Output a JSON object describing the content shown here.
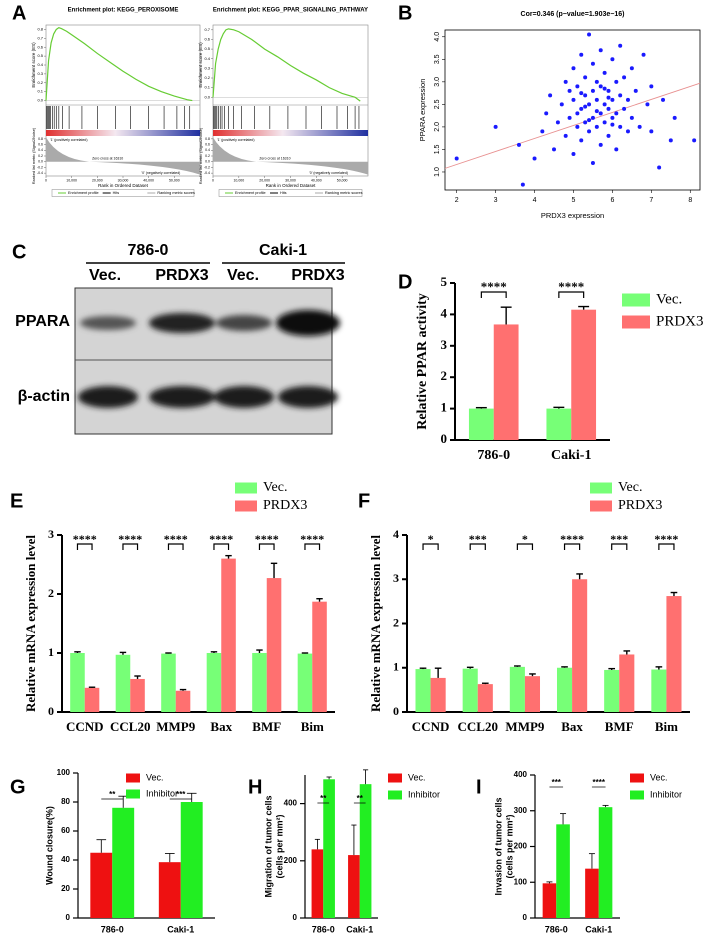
{
  "panel_labels": [
    "A",
    "B",
    "C",
    "D",
    "E",
    "F",
    "G",
    "H",
    "I"
  ],
  "blot": {
    "groups": [
      "786-0",
      "Caki-1"
    ],
    "lanes": [
      "Vec.",
      "PRDX3",
      "Vec.",
      "PRDX3"
    ],
    "rows": [
      "PPARA",
      "β-actin"
    ]
  },
  "chart_data": [
    {
      "type": "gsea",
      "title": "Enrichment plot: KEGG_PEROXISOME",
      "ylabel": "Enrichment score (ES)",
      "metric_label": "Ranked list metric (Signal2Noise)",
      "xlabel": "Rank in Ordered Dataset",
      "annotations": [
        "'1' (positively correlated)",
        "Zero cross at 16310",
        "'0' (negatively correlated)"
      ],
      "legend": [
        "Enrichment profile",
        "Hits",
        "Ranking metric scores"
      ],
      "color": "#66cc33",
      "x": [
        0,
        1000,
        2000,
        3000,
        4000,
        5000,
        6000,
        8000,
        10000,
        15000,
        20000,
        25000,
        30000,
        35000,
        40000,
        45000,
        50000,
        55000,
        57000
      ],
      "values": [
        0,
        0.45,
        0.65,
        0.75,
        0.8,
        0.82,
        0.81,
        0.78,
        0.74,
        0.64,
        0.53,
        0.43,
        0.33,
        0.24,
        0.16,
        0.1,
        0.05,
        0.01,
        0
      ],
      "hits": [
        200,
        500,
        900,
        1300,
        1800,
        2500,
        3200,
        4000,
        5000,
        6500,
        9000,
        14000,
        20000,
        27000,
        33000,
        40000,
        46000,
        51000,
        54000,
        56000
      ],
      "xlim": [
        0,
        60000
      ],
      "ylim": [
        -0.05,
        0.85
      ],
      "xticks": [
        0,
        {
          "value": 10000,
          "label": "10,000"
        },
        {
          "value": 20000,
          "label": "20,000"
        },
        {
          "value": 30000,
          "label": "30,000"
        },
        {
          "value": 40000,
          "label": "40,000"
        },
        {
          "value": 50000,
          "label": "50,000"
        }
      ],
      "yticks": [
        {
          "value": 0,
          "label": "0.0"
        },
        0.1,
        0.2,
        0.3,
        0.4,
        0.5,
        0.6,
        0.7,
        0.8
      ],
      "metric_ylim": [
        -0.5,
        0.9
      ],
      "metric_ticks": [
        0.8,
        0.6,
        0.4,
        0.2,
        {
          "value": 0,
          "label": "0.0"
        },
        -0.2,
        -0.4
      ]
    },
    {
      "type": "gsea",
      "title": "Enrichment plot: KEGG_PPAR_SIGNALING_PATHWAY",
      "ylabel": "Enrichment score (ES)",
      "metric_label": "Ranked list metric (Signal2Noise)",
      "xlabel": "Rank in Ordered Dataset",
      "annotations": [
        "'1' (positively correlated)",
        "Zero cross at 16310",
        "'0' (negatively correlated)"
      ],
      "legend": [
        "Enrichment profile",
        "Hits",
        "Ranking metric scores"
      ],
      "color": "#66cc33",
      "x": [
        0,
        1000,
        2000,
        3000,
        4000,
        5000,
        6000,
        8000,
        10000,
        15000,
        20000,
        25000,
        30000,
        35000,
        40000,
        45000,
        50000,
        55000,
        57000
      ],
      "values": [
        0,
        0.35,
        0.5,
        0.6,
        0.66,
        0.7,
        0.71,
        0.7,
        0.68,
        0.6,
        0.5,
        0.42,
        0.33,
        0.25,
        0.18,
        0.1,
        0.04,
        0,
        -0.04
      ],
      "hits": [
        300,
        700,
        1100,
        1500,
        2100,
        2800,
        3500,
        4500,
        6000,
        8000,
        11000,
        16000,
        22000,
        29000,
        36000,
        42000,
        48000,
        52000,
        55000,
        56500
      ],
      "xlim": [
        0,
        60000
      ],
      "ylim": [
        -0.08,
        0.75
      ],
      "xticks": [
        0,
        {
          "value": 10000,
          "label": "10,000"
        },
        {
          "value": 20000,
          "label": "20,000"
        },
        {
          "value": 30000,
          "label": "30,000"
        },
        {
          "value": 40000,
          "label": "40,000"
        },
        {
          "value": 50000,
          "label": "50,000"
        }
      ],
      "yticks": [
        {
          "value": 0,
          "label": "0.0"
        },
        0.1,
        0.2,
        0.3,
        0.4,
        0.5,
        0.6,
        0.7
      ],
      "metric_ylim": [
        -0.5,
        0.9
      ],
      "metric_ticks": [
        0.8,
        0.6,
        0.4,
        0.2,
        {
          "value": 0,
          "label": "0.0"
        },
        -0.2,
        -0.4
      ]
    },
    {
      "type": "scatter",
      "title": "Cor=0.346 (p−value=1.903e−16)",
      "xlabel": "PRDX3 expression",
      "ylabel": "PPARA expression",
      "color": "#1a1aff",
      "fit_color": "#e89090",
      "x": [
        2,
        3,
        3.7,
        3.6,
        4,
        4.2,
        4.3,
        4.4,
        4.5,
        4.6,
        4.7,
        4.8,
        4.8,
        4.9,
        5.0,
        5.0,
        5.0,
        5.1,
        5.1,
        5.2,
        5.2,
        5.2,
        5.3,
        5.3,
        5.3,
        5.4,
        5.4,
        5.4,
        5.5,
        5.5,
        5.5,
        5.5,
        5.6,
        5.6,
        5.6,
        5.7,
        5.7,
        5.7,
        5.7,
        5.8,
        5.8,
        5.8,
        5.9,
        5.9,
        5.9,
        6.0,
        6.0,
        6.0,
        6.1,
        6.1,
        6.1,
        6.2,
        6.2,
        6.2,
        6.3,
        6.3,
        6.4,
        6.4,
        6.5,
        6.5,
        6.6,
        6.7,
        6.8,
        6.9,
        7.0,
        7.0,
        7.2,
        7.3,
        7.5,
        7.6,
        8.1,
        4.9,
        5.1,
        5.3,
        5.6,
        5.9,
        6.0,
        5.4,
        5.2,
        5.8
      ],
      "values": [
        1.3,
        2.0,
        0.72,
        1.6,
        1.3,
        1.9,
        2.3,
        2.7,
        1.5,
        2.1,
        2.5,
        1.8,
        3.0,
        2.2,
        1.4,
        2.6,
        3.3,
        2.0,
        2.9,
        1.7,
        2.4,
        3.6,
        2.1,
        2.7,
        3.1,
        1.9,
        2.5,
        4.05,
        1.2,
        2.2,
        2.8,
        3.4,
        2.0,
        2.6,
        3.0,
        1.6,
        2.3,
        2.9,
        3.7,
        2.1,
        2.5,
        3.2,
        1.8,
        2.4,
        2.8,
        2.2,
        2.6,
        3.5,
        1.5,
        2.3,
        3.0,
        2.0,
        2.7,
        3.8,
        2.4,
        3.1,
        1.9,
        2.6,
        2.2,
        3.3,
        2.8,
        2.0,
        3.6,
        2.5,
        2.9,
        1.9,
        1.1,
        2.6,
        1.7,
        2.2,
        1.7,
        2.8,
        2.3,
        2.45,
        2.35,
        2.65,
        2.05,
        2.15,
        2.75,
        2.85
      ],
      "fit": {
        "x": [
          1.7,
          8.25
        ],
        "values": [
          1.08,
          2.97
        ]
      },
      "xlim": [
        1.7,
        8.25
      ],
      "ylim": [
        0.6,
        4.15
      ],
      "xticks": [
        2,
        3,
        4,
        5,
        6,
        7,
        8
      ],
      "yticks": [
        {
          "value": 1,
          "label": "1.0"
        },
        1.5,
        {
          "value": 2,
          "label": "2.0"
        },
        2.5,
        {
          "value": 3,
          "label": "3.0"
        },
        3.5,
        {
          "value": 4,
          "label": "4.0"
        }
      ]
    },
    {
      "type": "bar",
      "ylabel": "Relative PPAR activity",
      "categories": [
        "786-0",
        "Caki-1"
      ],
      "series": [
        {
          "name": "Vec.",
          "color": "#77ff77",
          "values": [
            1.0,
            1.0
          ],
          "errors": [
            0.03,
            0.04
          ]
        },
        {
          "name": "PRDX3",
          "color": "#ff7070",
          "values": [
            3.68,
            4.15
          ],
          "errors": [
            0.55,
            0.1
          ]
        }
      ],
      "significance": [
        "****",
        "****"
      ],
      "ylim": [
        0,
        5
      ],
      "yticks": [
        0,
        1,
        2,
        3,
        4,
        5
      ]
    },
    {
      "type": "bar",
      "ylabel": "Relative mRNA expression level",
      "categories": [
        "CCND",
        "CCL20",
        "MMP9",
        "Bax",
        "BMF",
        "Bim"
      ],
      "series": [
        {
          "name": "Vec.",
          "color": "#77ff77",
          "values": [
            1.0,
            0.97,
            0.99,
            1.0,
            1.0,
            0.99
          ],
          "errors": [
            0.02,
            0.04,
            0.01,
            0.02,
            0.05,
            0.01
          ]
        },
        {
          "name": "PRDX3",
          "color": "#ff7070",
          "values": [
            0.41,
            0.56,
            0.36,
            2.6,
            2.27,
            1.87
          ],
          "errors": [
            0.01,
            0.05,
            0.02,
            0.05,
            0.25,
            0.05
          ]
        }
      ],
      "significance": [
        "****",
        "****",
        "****",
        "****",
        "****",
        "****"
      ],
      "ylim": [
        0,
        3
      ],
      "yticks": [
        0,
        1,
        2,
        3
      ]
    },
    {
      "type": "bar",
      "ylabel": "Relative mRNA expression level",
      "categories": [
        "CCND",
        "CCL20",
        "MMP9",
        "Bax",
        "BMF",
        "Bim"
      ],
      "series": [
        {
          "name": "Vec.",
          "color": "#77ff77",
          "values": [
            0.97,
            0.98,
            1.02,
            1.0,
            0.95,
            0.96
          ],
          "errors": [
            0.02,
            0.03,
            0.02,
            0.02,
            0.03,
            0.06
          ]
        },
        {
          "name": "PRDX3",
          "color": "#ff7070",
          "values": [
            0.77,
            0.63,
            0.81,
            3.0,
            1.3,
            2.62
          ],
          "errors": [
            0.22,
            0.02,
            0.05,
            0.12,
            0.08,
            0.08
          ]
        }
      ],
      "significance": [
        "*",
        "***",
        "*",
        "****",
        "***",
        "****"
      ],
      "ylim": [
        0,
        4
      ],
      "yticks": [
        0,
        1,
        2,
        3,
        4
      ]
    },
    {
      "type": "bar",
      "ylabel": "Wound closure(%)",
      "categories": [
        "786-0",
        "Caki-1"
      ],
      "series": [
        {
          "name": "Vec.",
          "color": "#ee1111",
          "values": [
            45,
            38.5
          ],
          "errors": [
            9,
            6
          ]
        },
        {
          "name": "Inhibitor",
          "color": "#22ee22",
          "values": [
            76,
            80
          ],
          "errors": [
            8,
            6
          ]
        }
      ],
      "significance": [
        "**",
        "***"
      ],
      "ylim": [
        0,
        100
      ],
      "yticks": [
        0,
        20,
        40,
        60,
        80,
        100
      ]
    },
    {
      "type": "bar",
      "ylabel": [
        "Migration of tumor cells",
        "(cells per mm²)"
      ],
      "categories": [
        "786-0",
        "Caki-1"
      ],
      "series": [
        {
          "name": "Vec.",
          "color": "#ee1111",
          "values": [
            240,
            220
          ],
          "errors": [
            35,
            105
          ]
        },
        {
          "name": "Inhibitor",
          "color": "#22ee22",
          "values": [
            485,
            468
          ],
          "errors": [
            8,
            50
          ]
        }
      ],
      "significance": [
        "**",
        "**"
      ],
      "ylim": [
        0,
        500
      ],
      "yticks": [
        0,
        200,
        400
      ]
    },
    {
      "type": "bar",
      "ylabel": [
        "Invasion of tumor cells",
        "(cells per mm²)"
      ],
      "categories": [
        "786-0",
        "Caki-1"
      ],
      "series": [
        {
          "name": "Vec.",
          "color": "#ee1111",
          "values": [
            97,
            138
          ],
          "errors": [
            4,
            42
          ]
        },
        {
          "name": "Inhibitor",
          "color": "#22ee22",
          "values": [
            262,
            310
          ],
          "errors": [
            30,
            5
          ]
        }
      ],
      "significance": [
        "***",
        "****"
      ],
      "ylim": [
        0,
        400
      ],
      "yticks": [
        0,
        100,
        200,
        300,
        400
      ]
    }
  ]
}
